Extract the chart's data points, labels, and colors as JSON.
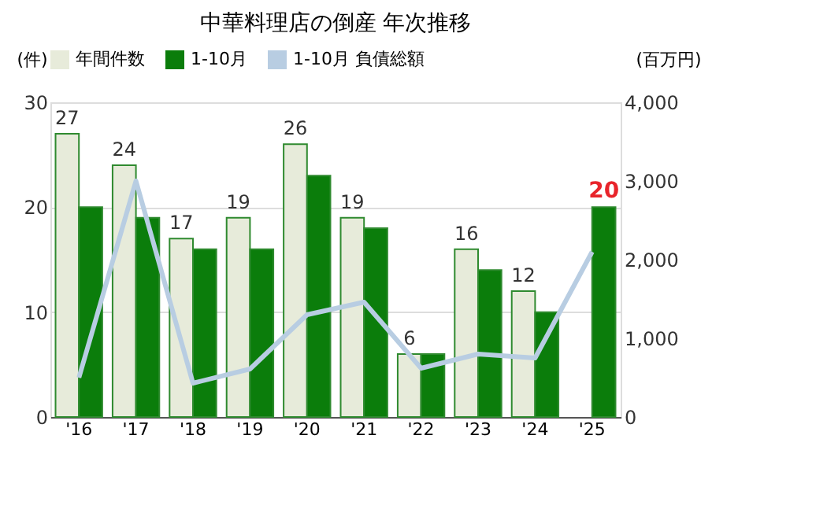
{
  "chart_data": {
    "type": "bar",
    "title": "中華料理店の倒産 年次推移",
    "categories": [
      "'16",
      "'17",
      "'18",
      "'19",
      "'20",
      "'21",
      "'22",
      "'23",
      "'24",
      "'25"
    ],
    "ylabel": "(件)",
    "y2label": "(百万円)",
    "ylim": [
      0,
      30
    ],
    "yticks": [
      0,
      10,
      20,
      30
    ],
    "y2lim": [
      0,
      4000
    ],
    "y2ticks": [
      0,
      {
        "value": 1000,
        "label": "1,000"
      },
      {
        "value": 2000,
        "label": "2,000"
      },
      {
        "value": 3000,
        "label": "3,000"
      },
      {
        "value": 4000,
        "label": "4,000"
      }
    ],
    "grid": "y",
    "legend": "top",
    "series": [
      {
        "name": "年間件数",
        "color": "#e7ebda",
        "values": [
          27,
          24,
          17,
          19,
          26,
          19,
          6,
          16,
          12,
          null
        ],
        "value_labels": [
          "27",
          "24",
          "17",
          "19",
          "26",
          "19",
          "6",
          "16",
          "12",
          null
        ]
      },
      {
        "name": "1-10月",
        "color": "#0b7d0b",
        "values": [
          20,
          19,
          16,
          16,
          23,
          18,
          6,
          14,
          10,
          20
        ],
        "value_labels": [
          null,
          null,
          null,
          null,
          null,
          null,
          null,
          null,
          null,
          "20"
        ]
      },
      {
        "name": "1-10月 負債総額",
        "type": "line",
        "axis": "y2",
        "color": "#b8cde2",
        "values": [
          500,
          3000,
          430,
          610,
          1300,
          1460,
          620,
          800,
          750,
          2100
        ]
      }
    ]
  }
}
